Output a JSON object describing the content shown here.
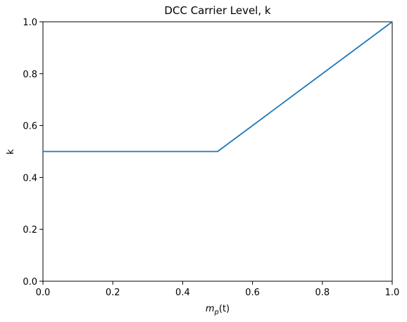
{
  "chart_data": {
    "type": "line",
    "title": "DCC Carrier Level, k",
    "xlabel_base": "m",
    "xlabel_sub": "p",
    "xlabel_suffix": "(t)",
    "ylabel": "k",
    "xlim": [
      0.0,
      1.0
    ],
    "ylim": [
      0.0,
      1.0
    ],
    "xticks": [
      0.0,
      0.2,
      0.4,
      0.6,
      0.8,
      1.0
    ],
    "yticks": [
      0.0,
      0.2,
      0.4,
      0.6,
      0.8,
      1.0
    ],
    "xtick_labels": [
      "0.0",
      "0.2",
      "0.4",
      "0.6",
      "0.8",
      "1.0"
    ],
    "ytick_labels": [
      "0.0",
      "0.2",
      "0.4",
      "0.6",
      "0.8",
      "1.0"
    ],
    "grid": false,
    "series": [
      {
        "color": "#1f77b4",
        "x": [
          0.0,
          0.5,
          1.0
        ],
        "y": [
          0.5,
          0.5,
          1.0
        ]
      }
    ]
  }
}
